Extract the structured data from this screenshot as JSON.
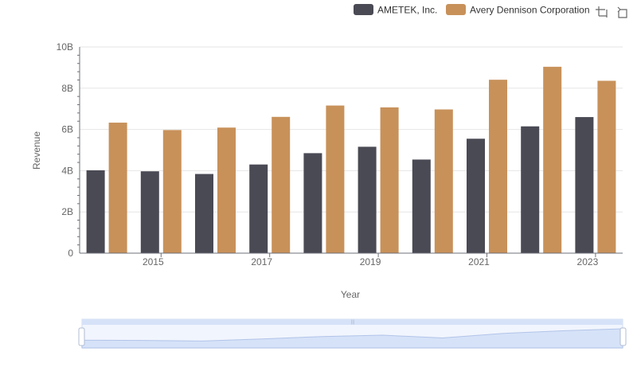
{
  "chart_data": {
    "type": "bar",
    "xlabel": "Year",
    "ylabel": "Revenue",
    "ylim": [
      0,
      10000000000
    ],
    "y_ticks": [
      {
        "value": 0,
        "label": "0"
      },
      {
        "value": 2000000000,
        "label": "2B"
      },
      {
        "value": 4000000000,
        "label": "4B"
      },
      {
        "value": 6000000000,
        "label": "6B"
      },
      {
        "value": 8000000000,
        "label": "8B"
      },
      {
        "value": 10000000000,
        "label": "10B"
      }
    ],
    "categories": [
      "2014",
      "2015",
      "2016",
      "2017",
      "2018",
      "2019",
      "2020",
      "2021",
      "2022",
      "2023"
    ],
    "x_tick_labels": [
      "2015",
      "2017",
      "2019",
      "2021",
      "2023"
    ],
    "grid": true,
    "legend_position": "top-right",
    "series": [
      {
        "name": "AMETEK, Inc.",
        "color": "#4a4a55",
        "values": [
          4020000000,
          3970000000,
          3840000000,
          4300000000,
          4850000000,
          5160000000,
          4540000000,
          5550000000,
          6150000000,
          6600000000
        ]
      },
      {
        "name": "Avery Dennison Corporation",
        "color": "#c8915a",
        "values": [
          6330000000,
          5970000000,
          6090000000,
          6610000000,
          7160000000,
          7070000000,
          6970000000,
          8410000000,
          9040000000,
          8360000000
        ]
      }
    ]
  },
  "toolbar": {
    "zoom_icon": "zoom-select-icon",
    "restore_icon": "restore-icon"
  },
  "data_zoom": {
    "range_start_pct": 0,
    "range_end_pct": 100,
    "fill_color": "#d6e2f8",
    "border_color": "#c3cde0"
  }
}
